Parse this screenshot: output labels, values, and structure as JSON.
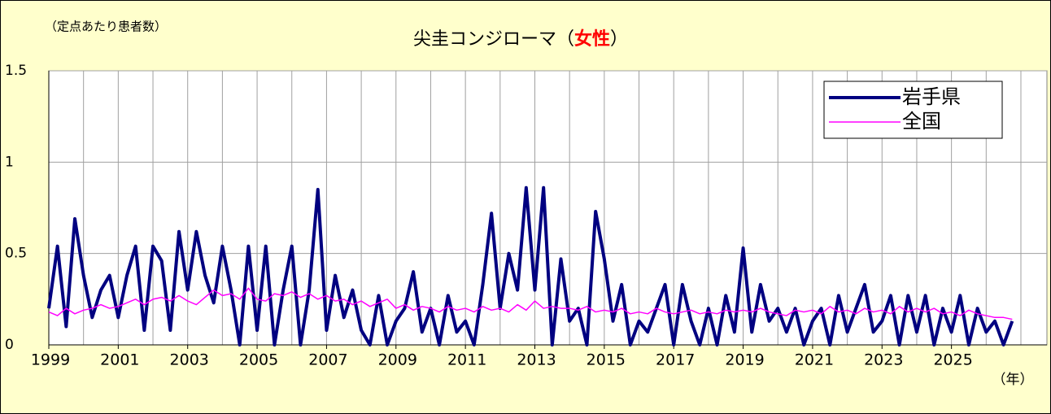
{
  "chart_data": {
    "type": "line",
    "title_parts": [
      "尖圭コンジローマ（",
      "女性",
      "）"
    ],
    "title_colors": [
      "#000000",
      "#ff0000",
      "#000000"
    ],
    "y_label": "（定点あたり患者数）",
    "x_label": "（年）",
    "x": [
      1999,
      1999.25,
      1999.5,
      1999.75,
      2000,
      2000.25,
      2000.5,
      2000.75,
      2001,
      2001.25,
      2001.5,
      2001.75,
      2002,
      2002.25,
      2002.5,
      2002.75,
      2003,
      2003.25,
      2003.5,
      2003.75,
      2004,
      2004.25,
      2004.5,
      2004.75,
      2005,
      2005.25,
      2005.5,
      2005.75,
      2006,
      2006.25,
      2006.5,
      2006.75,
      2007,
      2007.25,
      2007.5,
      2007.75,
      2008,
      2008.25,
      2008.5,
      2008.75,
      2009,
      2009.25,
      2009.5,
      2009.75,
      2010,
      2010.25,
      2010.5,
      2010.75,
      2011,
      2011.25,
      2011.5,
      2011.75,
      2012,
      2012.25,
      2012.5,
      2012.75,
      2013,
      2013.25,
      2013.5,
      2013.75,
      2014,
      2014.25,
      2014.5,
      2014.75,
      2015,
      2015.25,
      2015.5,
      2015.75,
      2016,
      2016.25,
      2016.5,
      2016.75,
      2017,
      2017.25,
      2017.5,
      2017.75,
      2018,
      2018.25,
      2018.5,
      2018.75,
      2019,
      2019.25,
      2019.5,
      2019.75,
      2020,
      2020.25,
      2020.5,
      2020.75,
      2021,
      2021.25,
      2021.5,
      2021.75,
      2022,
      2022.25,
      2022.5,
      2022.75,
      2023,
      2023.25,
      2023.5,
      2023.75,
      2024,
      2024.25,
      2024.5,
      2024.75,
      2025,
      2025.25,
      2025.5,
      2025.75,
      2026,
      2026.25,
      2026.5,
      2026.75
    ],
    "series": [
      {
        "name": "岩手県",
        "color": "#000080",
        "width": 4,
        "values": [
          0.2,
          0.54,
          0.1,
          0.69,
          0.38,
          0.15,
          0.3,
          0.38,
          0.15,
          0.38,
          0.54,
          0.08,
          0.54,
          0.46,
          0.08,
          0.62,
          0.3,
          0.62,
          0.38,
          0.23,
          0.54,
          0.3,
          0.0,
          0.54,
          0.08,
          0.54,
          0.0,
          0.3,
          0.54,
          0.0,
          0.3,
          0.85,
          0.08,
          0.38,
          0.15,
          0.3,
          0.08,
          0.0,
          0.27,
          0.0,
          0.13,
          0.2,
          0.4,
          0.07,
          0.2,
          0.0,
          0.27,
          0.07,
          0.13,
          0.0,
          0.33,
          0.72,
          0.2,
          0.5,
          0.3,
          0.86,
          0.3,
          0.86,
          0.0,
          0.47,
          0.13,
          0.2,
          0.0,
          0.73,
          0.47,
          0.13,
          0.33,
          0.0,
          0.13,
          0.07,
          0.2,
          0.33,
          0.0,
          0.33,
          0.13,
          0.0,
          0.2,
          0.0,
          0.27,
          0.07,
          0.53,
          0.07,
          0.33,
          0.13,
          0.2,
          0.07,
          0.2,
          0.0,
          0.13,
          0.2,
          0.0,
          0.27,
          0.07,
          0.2,
          0.33,
          0.07,
          0.13,
          0.27,
          0.0,
          0.27,
          0.07,
          0.27,
          0.0,
          0.2,
          0.07,
          0.27,
          0.0,
          0.2,
          0.07,
          0.13,
          0.0,
          0.13
        ]
      },
      {
        "name": "全国",
        "color": "#ff00ff",
        "width": 1.5,
        "values": [
          0.18,
          0.16,
          0.2,
          0.17,
          0.19,
          0.2,
          0.22,
          0.2,
          0.21,
          0.23,
          0.25,
          0.22,
          0.25,
          0.26,
          0.24,
          0.27,
          0.24,
          0.22,
          0.26,
          0.3,
          0.27,
          0.28,
          0.25,
          0.31,
          0.25,
          0.24,
          0.28,
          0.27,
          0.29,
          0.26,
          0.28,
          0.25,
          0.27,
          0.24,
          0.25,
          0.22,
          0.24,
          0.21,
          0.23,
          0.25,
          0.2,
          0.22,
          0.19,
          0.21,
          0.2,
          0.18,
          0.21,
          0.19,
          0.2,
          0.18,
          0.21,
          0.19,
          0.2,
          0.18,
          0.22,
          0.19,
          0.24,
          0.2,
          0.21,
          0.2,
          0.2,
          0.19,
          0.21,
          0.18,
          0.19,
          0.18,
          0.2,
          0.17,
          0.18,
          0.17,
          0.2,
          0.18,
          0.17,
          0.18,
          0.19,
          0.17,
          0.18,
          0.17,
          0.19,
          0.18,
          0.19,
          0.18,
          0.2,
          0.18,
          0.17,
          0.16,
          0.19,
          0.18,
          0.19,
          0.17,
          0.21,
          0.18,
          0.19,
          0.17,
          0.2,
          0.18,
          0.19,
          0.17,
          0.21,
          0.18,
          0.2,
          0.18,
          0.2,
          0.17,
          0.18,
          0.16,
          0.19,
          0.17,
          0.16,
          0.15,
          0.15,
          0.14
        ]
      }
    ],
    "xlim": [
      1999,
      2027.75
    ],
    "xticks": [
      1999,
      2001,
      2003,
      2005,
      2007,
      2009,
      2011,
      2013,
      2015,
      2017,
      2019,
      2021,
      2023,
      2025
    ],
    "xgrid": [
      2000,
      2001,
      2002,
      2003,
      2004,
      2005,
      2006,
      2007,
      2008,
      2009,
      2010,
      2011,
      2012,
      2013,
      2014,
      2015,
      2016,
      2017,
      2018,
      2019,
      2020,
      2021,
      2022,
      2023,
      2024,
      2025,
      2026,
      2027
    ],
    "ylim": [
      0,
      1.5
    ],
    "yticks": [
      0,
      0.5,
      1,
      1.5
    ],
    "grid": true,
    "legend": "upper right"
  }
}
